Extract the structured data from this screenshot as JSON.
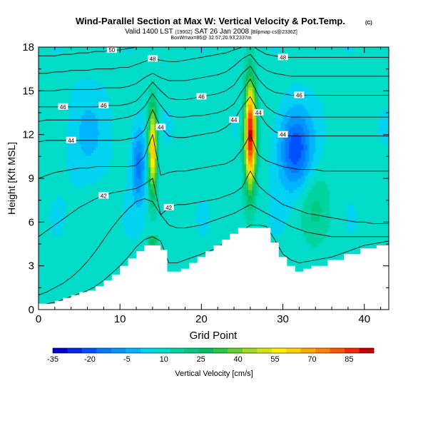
{
  "chart_data": {
    "type": "heatmap",
    "title": "Wind-Parallel Section at Max W: Vertical Velocity & Pot.Temp.",
    "title_mark": "(C)",
    "subtitle_valid": "Valid 1400 LST",
    "subtitle_utc": "(1900Z)",
    "subtitle_date": "SAT 26 Jan 2008",
    "subtitle_source": "[Blipmap cs@2336Z]",
    "subtitle_box": "BoxWmax=86@ 32.57,20.93,2337m",
    "xlabel": "Grid Point",
    "ylabel": "Height [Kft MSL]",
    "xlim": [
      0,
      43
    ],
    "ylim": [
      0,
      18
    ],
    "x_ticks": [
      "0",
      "10",
      "20",
      "30",
      "40"
    ],
    "y_ticks": [
      "0",
      "3",
      "6",
      "9",
      "12",
      "15",
      "18"
    ],
    "colorbar": {
      "label": "Vertical Velocity [cm/s]",
      "range": [
        -35,
        95
      ],
      "tick_labels": [
        "-35",
        "-20",
        "-5",
        "10",
        "25",
        "40",
        "55",
        "70",
        "85"
      ],
      "colors": [
        "#0000c8",
        "#0028e6",
        "#0050ff",
        "#0078ff",
        "#0096ff",
        "#00b4ff",
        "#00d2f0",
        "#00dcc8",
        "#00d2a0",
        "#00c882",
        "#00be64",
        "#28c846",
        "#64d232",
        "#a0dc1e",
        "#d2e614",
        "#ffee00",
        "#ffd200",
        "#ffaa00",
        "#ff8200",
        "#ff5500",
        "#f02800",
        "#c80000"
      ]
    },
    "terrain_top": [
      [
        0,
        0.4
      ],
      [
        1,
        0.4
      ],
      [
        2,
        0.6
      ],
      [
        3,
        0.8
      ],
      [
        4,
        1.0
      ],
      [
        5,
        1.2
      ],
      [
        6,
        1.3
      ],
      [
        7,
        1.6
      ],
      [
        8,
        2.0
      ],
      [
        9,
        2.4
      ],
      [
        10,
        3.0
      ],
      [
        11,
        3.5
      ],
      [
        12,
        4.0
      ],
      [
        13,
        4.4
      ],
      [
        14,
        4.4
      ],
      [
        15,
        4.1
      ],
      [
        15.8,
        2.6
      ],
      [
        16.5,
        2.6
      ],
      [
        17.5,
        2.8
      ],
      [
        18.5,
        3.2
      ],
      [
        19.5,
        3.6
      ],
      [
        20.5,
        4.0
      ],
      [
        21.5,
        4.4
      ],
      [
        22.5,
        4.8
      ],
      [
        23.5,
        5.2
      ],
      [
        24.5,
        5.6
      ],
      [
        26,
        5.6
      ],
      [
        27.5,
        5.6
      ],
      [
        28.5,
        4.6
      ],
      [
        29.5,
        3.6
      ],
      [
        30.5,
        3.0
      ],
      [
        31.5,
        2.6
      ],
      [
        32.5,
        2.8
      ],
      [
        33.5,
        3.0
      ],
      [
        35.5,
        3.4
      ],
      [
        37.5,
        3.8
      ],
      [
        39.5,
        4.2
      ],
      [
        41.5,
        4.4
      ],
      [
        43,
        4.4
      ]
    ],
    "updrafts": [
      {
        "name": "updraft-west",
        "x": 14.0,
        "width": 0.55,
        "z_base": 5.0,
        "z_peak": 11.0,
        "z_spread": 3.0,
        "w_max": 58
      },
      {
        "name": "updraft-east",
        "x": 26.0,
        "width": 0.7,
        "z_base": 5.5,
        "z_peak": 12.0,
        "z_spread": 3.5,
        "w_max": 86
      }
    ],
    "downdrafts": [
      {
        "name": "downdraft-west",
        "x": 12.3,
        "width": 0.9,
        "z_peak": 10.0,
        "z_spread": 2.6,
        "w_min": -22
      },
      {
        "name": "downdraft-east",
        "x": 31.5,
        "width": 2.0,
        "z_peak": 11.0,
        "z_spread": 2.6,
        "w_min": -30
      }
    ],
    "theta_contours": [
      {
        "value": "40",
        "heights": [
          0.3,
          0.4,
          0.5,
          0.7,
          0.9,
          1.1,
          1.3,
          1.6,
          2.0,
          2.5,
          3.0,
          3.6,
          4.3,
          4.8,
          5.0,
          4.7,
          3.2,
          3.2,
          3.4,
          3.6,
          3.8,
          4.0,
          4.3,
          4.6,
          5.0,
          5.4,
          5.8,
          5.8,
          5.7,
          4.8,
          3.8,
          3.4,
          3.2,
          3.3,
          3.4,
          3.5,
          3.6,
          3.8,
          4.0,
          4.2,
          4.4,
          4.5,
          4.6,
          4.7
        ],
        "label": false
      },
      {
        "value": "41",
        "heights": [
          1.0,
          1.2,
          1.5,
          1.8,
          2.2,
          2.7,
          3.3,
          4.0,
          4.8,
          5.6,
          6.3,
          6.9,
          7.4,
          7.6,
          7.4,
          6.5,
          5.8,
          5.6,
          5.6,
          5.7,
          5.8,
          6.0,
          6.2,
          6.4,
          6.6,
          6.9,
          7.2,
          6.9,
          6.6,
          6.3,
          6.0,
          5.7,
          5.5,
          5.3,
          5.2,
          5.1,
          5.0,
          5.0,
          5.0,
          5.0,
          5.0,
          5.0,
          5.0,
          5.0
        ],
        "label": false
      },
      {
        "value": "42",
        "heights": [
          5.0,
          5.4,
          5.8,
          6.2,
          6.6,
          7.0,
          7.3,
          7.6,
          7.8,
          8.0,
          8.1,
          8.2,
          8.3,
          8.6,
          9.0,
          6.5,
          7.0,
          7.2,
          7.2,
          7.3,
          7.4,
          7.5,
          7.6,
          7.8,
          8.0,
          8.4,
          9.5,
          8.5,
          8.0,
          7.6,
          7.2,
          7.0,
          6.8,
          6.6,
          6.5,
          6.4,
          6.3,
          6.2,
          6.1,
          6.0,
          6.0,
          5.9,
          5.9,
          5.9
        ],
        "label": true,
        "label_at": [
          [
            8,
            "42"
          ],
          [
            16,
            "42"
          ]
        ]
      },
      {
        "value": "43",
        "heights": [
          9.0,
          9.2,
          9.4,
          9.5,
          9.6,
          9.7,
          9.7,
          9.8,
          9.8,
          9.8,
          9.8,
          9.8,
          9.9,
          10.5,
          12.0,
          9.2,
          9.4,
          9.5,
          9.5,
          9.6,
          9.7,
          9.8,
          9.9,
          10.0,
          10.3,
          11.0,
          12.0,
          10.6,
          10.2,
          10.0,
          9.8,
          9.7,
          9.6,
          9.6,
          9.6,
          9.5,
          9.5,
          9.5,
          9.5,
          9.5,
          9.5,
          9.5,
          9.5,
          9.5
        ],
        "label": false
      },
      {
        "value": "44",
        "heights": [
          11.5,
          11.6,
          11.6,
          11.6,
          11.6,
          11.6,
          11.6,
          11.6,
          11.6,
          11.6,
          11.6,
          11.7,
          11.8,
          12.3,
          13.7,
          12.5,
          11.9,
          11.8,
          11.8,
          11.9,
          12.0,
          12.1,
          12.2,
          12.5,
          13.0,
          13.9,
          14.6,
          13.5,
          12.7,
          12.2,
          12.0,
          11.9,
          11.9,
          11.9,
          11.9,
          11.9,
          11.9,
          11.9,
          11.9,
          11.9,
          11.9,
          11.9,
          11.9,
          11.9
        ],
        "label": true,
        "label_at": [
          [
            4,
            "44"
          ],
          [
            15,
            "44"
          ],
          [
            24,
            "44"
          ],
          [
            30,
            "44"
          ],
          [
            27,
            "44"
          ]
        ]
      },
      {
        "value": "45",
        "heights": [
          12.9,
          13.0,
          13.0,
          13.0,
          13.0,
          13.0,
          13.0,
          13.0,
          13.0,
          13.0,
          13.1,
          13.2,
          13.4,
          13.9,
          14.8,
          14.0,
          13.3,
          13.2,
          13.2,
          13.3,
          13.3,
          13.4,
          13.5,
          13.7,
          14.1,
          15.0,
          15.8,
          14.7,
          13.9,
          13.5,
          13.3,
          13.2,
          13.2,
          13.2,
          13.2,
          13.2,
          13.2,
          13.2,
          13.2,
          13.2,
          13.2,
          13.2,
          13.2,
          13.2
        ],
        "label": false
      },
      {
        "value": "46",
        "heights": [
          13.9,
          13.9,
          13.9,
          13.9,
          13.9,
          13.9,
          13.9,
          13.9,
          14.0,
          14.0,
          14.0,
          14.1,
          14.3,
          14.9,
          15.6,
          15.0,
          14.5,
          14.4,
          14.4,
          14.5,
          14.6,
          14.7,
          14.8,
          15.0,
          15.4,
          16.2,
          16.7,
          15.8,
          15.2,
          14.9,
          14.8,
          14.7,
          14.7,
          14.7,
          14.7,
          14.7,
          14.7,
          14.7,
          14.7,
          14.7,
          14.7,
          14.7,
          14.7,
          14.7
        ],
        "label": true,
        "label_at": [
          [
            8,
            "46"
          ],
          [
            20,
            "46"
          ],
          [
            32,
            "46"
          ],
          [
            3,
            "46"
          ]
        ]
      },
      {
        "value": "47",
        "heights": [
          15.0,
          15.0,
          15.0,
          15.1,
          15.1,
          15.1,
          15.1,
          15.1,
          15.2,
          15.2,
          15.2,
          15.3,
          15.5,
          15.9,
          16.2,
          15.9,
          15.7,
          15.7,
          15.7,
          15.8,
          15.9,
          16.0,
          16.1,
          16.3,
          16.7,
          17.2,
          17.5,
          16.8,
          16.4,
          16.2,
          16.1,
          16.0,
          16.0,
          16.0,
          16.0,
          16.0,
          16.0,
          16.0,
          16.0,
          16.0,
          16.0,
          16.0,
          16.0,
          16.0
        ],
        "label": false
      },
      {
        "value": "48",
        "heights": [
          16.2,
          16.2,
          16.3,
          16.3,
          16.4,
          16.4,
          16.4,
          16.5,
          16.5,
          16.5,
          16.6,
          16.6,
          16.8,
          17.0,
          17.2,
          17.1,
          17.0,
          17.0,
          17.1,
          17.2,
          17.3,
          17.4,
          17.5,
          17.6,
          17.8,
          18.0,
          18.2,
          17.8,
          17.5,
          17.4,
          17.3,
          17.3,
          17.3,
          17.3,
          17.3,
          17.3,
          17.3,
          17.3,
          17.3,
          17.3,
          17.3,
          17.3,
          17.3,
          17.3
        ],
        "label": true,
        "label_at": [
          [
            14,
            "48"
          ],
          [
            30,
            "48"
          ]
        ]
      },
      {
        "value": "50",
        "heights": [
          17.4,
          17.4,
          17.4,
          17.5,
          17.5,
          17.6,
          17.6,
          17.7,
          17.7,
          17.8,
          17.8,
          17.9,
          18.0,
          18.2,
          18.4,
          18.4,
          18.4,
          18.4,
          18.5,
          18.5,
          18.6,
          18.7,
          18.8,
          18.9,
          19.0,
          19.2,
          19.4,
          19.1,
          18.9,
          18.8,
          18.7,
          18.7,
          18.7,
          18.7,
          18.7,
          18.7,
          18.7,
          18.7,
          18.7,
          18.7,
          18.7,
          18.7,
          18.7,
          18.7
        ],
        "label": true,
        "label_at": [
          [
            9,
            "50"
          ]
        ]
      }
    ]
  }
}
